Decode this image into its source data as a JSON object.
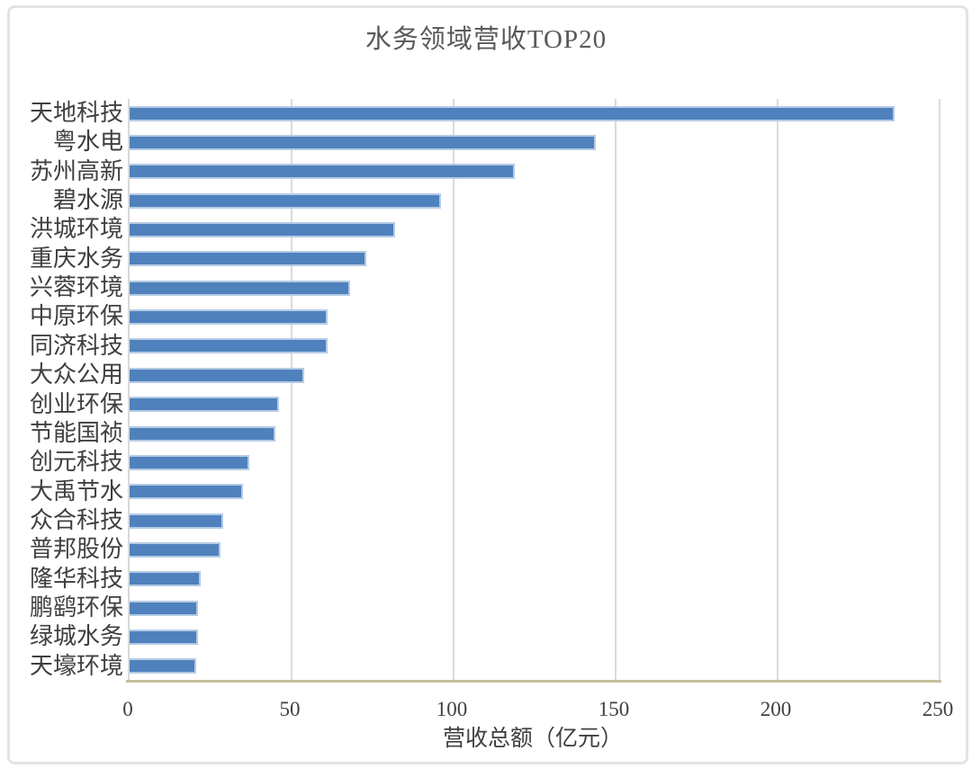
{
  "chart_data": {
    "type": "bar",
    "orientation": "horizontal",
    "title": "水务领域营收TOP20",
    "xlabel": "营收总额（亿元）",
    "ylabel": "",
    "categories": [
      "天地科技",
      "粤水电",
      "苏州高新",
      "碧水源",
      "洪城环境",
      "重庆水务",
      "兴蓉环境",
      "中原环保",
      "同济科技",
      "大众公用",
      "创业环保",
      "节能国祯",
      "创元科技",
      "大禹节水",
      "众合科技",
      "普邦股份",
      "隆华科技",
      "鹏鹞环保",
      "绿城水务",
      "天壕环境"
    ],
    "values": [
      236,
      144,
      119,
      96,
      82,
      73,
      68,
      61,
      61,
      54,
      46,
      45,
      37,
      35,
      29,
      28,
      22,
      21,
      21,
      20.5
    ],
    "xlim": [
      0,
      250
    ],
    "xticks": [
      0,
      50,
      100,
      150,
      200,
      250
    ],
    "grid": true,
    "legend": false,
    "colors": {
      "bar_fill": "#4f81bd",
      "bar_border": "#b4cbe5",
      "gridline": "#dadada",
      "y_axis_line": "#d9d9d9",
      "x_axis_line": "#c8bf9c",
      "title_text": "#595959",
      "label_text": "#3f3f3f",
      "outer_border": "#e3e3e3"
    }
  }
}
